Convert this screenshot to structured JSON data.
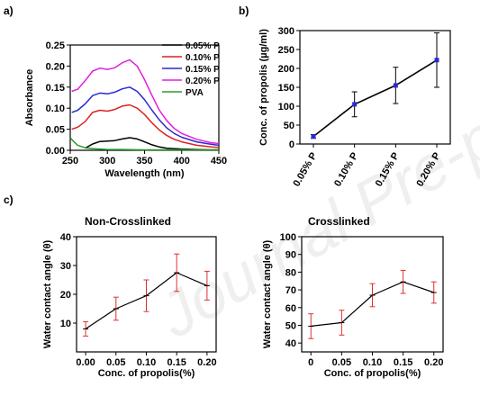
{
  "panels": {
    "a": {
      "label": "a)"
    },
    "b": {
      "label": "b)"
    },
    "c": {
      "label": "c)",
      "left_title": "Non-Crosslinked",
      "right_title": "Crosslinked"
    }
  },
  "watermark": "Journal Pre-proofs",
  "chart_data": [
    {
      "id": "a",
      "type": "line",
      "xlabel": "Wavelength (nm)",
      "ylabel": "Absorbance",
      "xlim": [
        250,
        450
      ],
      "ylim": [
        0,
        0.25
      ],
      "xticks": [
        "250",
        "300",
        "350",
        "400",
        "450"
      ],
      "yticks": [
        "0.00",
        "0.05",
        "0.10",
        "0.15",
        "0.20",
        "0.25"
      ],
      "legend": "top-right",
      "series": [
        {
          "name": "0.05% P",
          "color": "#000000",
          "x": [
            270,
            280,
            290,
            300,
            310,
            320,
            330,
            340,
            350,
            360,
            370,
            380,
            400,
            420,
            440,
            450
          ],
          "y": [
            0.005,
            0.015,
            0.021,
            0.022,
            0.023,
            0.027,
            0.03,
            0.027,
            0.02,
            0.013,
            0.008,
            0.005,
            0.003,
            0.002,
            0.001,
            0.001
          ]
        },
        {
          "name": "0.10% P",
          "color": "#dd2020",
          "x": [
            252,
            260,
            270,
            280,
            290,
            300,
            310,
            320,
            330,
            340,
            350,
            360,
            370,
            380,
            390,
            400,
            420,
            440,
            450
          ],
          "y": [
            0.05,
            0.055,
            0.068,
            0.09,
            0.095,
            0.093,
            0.097,
            0.105,
            0.108,
            0.1,
            0.085,
            0.065,
            0.048,
            0.035,
            0.026,
            0.02,
            0.012,
            0.008,
            0.007
          ]
        },
        {
          "name": "0.15% P",
          "color": "#2a2ad0",
          "x": [
            252,
            260,
            270,
            280,
            290,
            300,
            310,
            320,
            330,
            340,
            350,
            360,
            370,
            380,
            390,
            400,
            420,
            440,
            450
          ],
          "y": [
            0.09,
            0.095,
            0.11,
            0.13,
            0.136,
            0.134,
            0.138,
            0.146,
            0.15,
            0.14,
            0.12,
            0.095,
            0.072,
            0.053,
            0.04,
            0.031,
            0.02,
            0.014,
            0.012
          ]
        },
        {
          "name": "0.20% P",
          "color": "#e020e0",
          "x": [
            252,
            260,
            270,
            280,
            290,
            300,
            310,
            320,
            330,
            340,
            350,
            360,
            370,
            380,
            390,
            400,
            420,
            440,
            450
          ],
          "y": [
            0.14,
            0.145,
            0.165,
            0.188,
            0.195,
            0.192,
            0.196,
            0.208,
            0.215,
            0.2,
            0.168,
            0.13,
            0.095,
            0.07,
            0.052,
            0.04,
            0.026,
            0.018,
            0.016
          ]
        },
        {
          "name": "PVA",
          "color": "#2a9a2a",
          "x": [
            250,
            255,
            260,
            270,
            280,
            290,
            300,
            320,
            350,
            400,
            450
          ],
          "y": [
            0.03,
            0.02,
            0.012,
            0.006,
            0.004,
            0.003,
            0.002,
            0.002,
            0.001,
            0.001,
            0.001
          ]
        }
      ]
    },
    {
      "id": "b",
      "type": "line",
      "xlabel": "",
      "ylabel": "Conc. of propolis (µg/ml)",
      "ylim": [
        0,
        300
      ],
      "categories": [
        "0.05% P",
        "0.10% P",
        "0.15% P",
        "0.20% P"
      ],
      "yticks": [
        "0",
        "50",
        "100",
        "150",
        "200",
        "250",
        "300"
      ],
      "series": [
        {
          "values": [
            20,
            105,
            155,
            222
          ],
          "errors": [
            5,
            33,
            48,
            72
          ],
          "color": "#000000",
          "marker_color": "#2a2ad0"
        }
      ]
    },
    {
      "id": "c-left",
      "type": "line",
      "xlabel": "Conc. of propolis(%)",
      "ylabel": "Water contact angle (θ)",
      "xlim": [
        -0.015,
        0.215
      ],
      "ylim": [
        0,
        40
      ],
      "xticks": [
        "0.00",
        "0.05",
        "0.10",
        "0.15",
        "0.20"
      ],
      "yticks": [
        "10",
        "20",
        "30",
        "40"
      ],
      "series": [
        {
          "x": [
            0,
            0.05,
            0.1,
            0.15,
            0.2
          ],
          "y": [
            8,
            15,
            19.5,
            27.5,
            23
          ],
          "errors": [
            2.5,
            4,
            5.5,
            6.5,
            5
          ],
          "color": "#000000",
          "error_color": "#dd3030"
        }
      ]
    },
    {
      "id": "c-right",
      "type": "line",
      "xlabel": "Conc. of propolis(%)",
      "ylabel": "Water contact angle (θ)",
      "xlim": [
        -0.015,
        0.215
      ],
      "ylim": [
        35,
        100
      ],
      "xticks": [
        "0",
        "0.05",
        "0.10",
        "0.15",
        "0.20"
      ],
      "yticks": [
        "40",
        "50",
        "60",
        "70",
        "80",
        "90",
        "100"
      ],
      "series": [
        {
          "x": [
            0,
            0.05,
            0.1,
            0.15,
            0.2
          ],
          "y": [
            49.5,
            51.5,
            67,
            74.5,
            68.5
          ],
          "errors": [
            7,
            7,
            6.5,
            6.5,
            6
          ],
          "color": "#000000",
          "error_color": "#dd3030"
        }
      ]
    }
  ]
}
